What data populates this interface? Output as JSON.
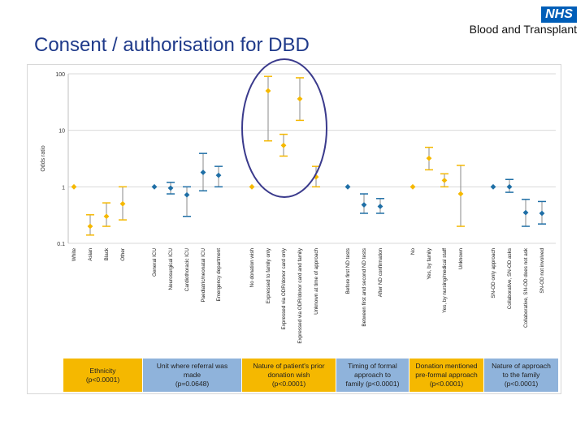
{
  "header": {
    "title": "Consent / authorisation for DBD",
    "logo_text": "NHS",
    "org_name": "Blood and Transplant"
  },
  "colors": {
    "gold": "#f5b800",
    "blue": "#1f6fa6",
    "highlight_circle": "#3a3a8c",
    "legend_gold": "#f5b800",
    "legend_blue": "#8fb3db"
  },
  "chart_data": {
    "type": "scatter",
    "ylabel": "Odds ratio",
    "yscale": "log",
    "ylim": [
      0.1,
      100
    ],
    "yticks": [
      0.1,
      1,
      10,
      100
    ],
    "grid": "horizontal",
    "categories": [
      "White",
      "Asian",
      "Black",
      "Other",
      "General ICU",
      "Neurosurgical ICU",
      "Cardiothoracic ICU",
      "Paediatric/neonatal ICU",
      "Emergency department",
      "No donation wish",
      "Expressed to family only",
      "Expressed via ODR/donor card only",
      "Expressed via ODR/donor card and family",
      "Unknown at time of approach",
      "Before first ND tests",
      "Between first and second ND tests",
      "After ND confirmation",
      "No",
      "Yes, by family",
      "Yes, by nursing/medical staff",
      "Unknown",
      "SN-OD only approach",
      "Collaborative, SN-OD asks",
      "Collaborative, SN-OD does not ask",
      "SN-OD not involved"
    ],
    "series": [
      {
        "group": "Ethnicity",
        "color": "gold",
        "points": [
          {
            "category": "White",
            "or": 1,
            "lower": 1,
            "upper": 1
          },
          {
            "category": "Asian",
            "or": 0.2,
            "lower": 0.14,
            "upper": 0.32
          },
          {
            "category": "Black",
            "or": 0.3,
            "lower": 0.2,
            "upper": 0.52
          },
          {
            "category": "Other",
            "or": 0.5,
            "lower": 0.26,
            "upper": 1.0
          }
        ]
      },
      {
        "group": "Unit where referral was made",
        "color": "blue",
        "points": [
          {
            "category": "General ICU",
            "or": 1,
            "lower": 1,
            "upper": 1
          },
          {
            "category": "Neurosurgical ICU",
            "or": 0.95,
            "lower": 0.75,
            "upper": 1.2
          },
          {
            "category": "Cardiothoracic ICU",
            "or": 0.72,
            "lower": 0.3,
            "upper": 1.0
          },
          {
            "category": "Paediatric/neonatal ICU",
            "or": 1.8,
            "lower": 0.85,
            "upper": 3.9
          },
          {
            "category": "Emergency department",
            "or": 1.6,
            "lower": 1.0,
            "upper": 2.3
          }
        ]
      },
      {
        "group": "Nature of patient's prior donation wish",
        "color": "gold",
        "points": [
          {
            "category": "No donation wish",
            "or": 1,
            "lower": 1,
            "upper": 1
          },
          {
            "category": "Expressed to family only",
            "or": 50,
            "lower": 6.5,
            "upper": 90
          },
          {
            "category": "Expressed via ODR/donor card only",
            "or": 5.4,
            "lower": 3.5,
            "upper": 8.5
          },
          {
            "category": "Expressed via ODR/donor card and family",
            "or": 36,
            "lower": 15,
            "upper": 85
          },
          {
            "category": "Unknown at time of approach",
            "or": 1.5,
            "lower": 1.0,
            "upper": 2.3
          }
        ]
      },
      {
        "group": "Timing of formal approach to family",
        "color": "blue",
        "points": [
          {
            "category": "Before first ND tests",
            "or": 1,
            "lower": 1,
            "upper": 1
          },
          {
            "category": "Between first and second ND tests",
            "or": 0.48,
            "lower": 0.34,
            "upper": 0.75
          },
          {
            "category": "After ND confirmation",
            "or": 0.45,
            "lower": 0.34,
            "upper": 0.62
          }
        ]
      },
      {
        "group": "Donation mentioned pre-formal approach",
        "color": "gold",
        "points": [
          {
            "category": "No",
            "or": 1,
            "lower": 1,
            "upper": 1
          },
          {
            "category": "Yes, by family",
            "or": 3.2,
            "lower": 2.0,
            "upper": 5.0
          },
          {
            "category": "Yes, by nursing/medical staff",
            "or": 1.3,
            "lower": 1.0,
            "upper": 1.7
          },
          {
            "category": "Unknown",
            "or": 0.75,
            "lower": 0.2,
            "upper": 2.4
          }
        ]
      },
      {
        "group": "Nature of approach to the family",
        "color": "blue",
        "points": [
          {
            "category": "SN-OD only approach",
            "or": 1,
            "lower": 1,
            "upper": 1
          },
          {
            "category": "Collaborative, SN-OD asks",
            "or": 1.0,
            "lower": 0.8,
            "upper": 1.35
          },
          {
            "category": "Collaborative, SN-OD does not ask",
            "or": 0.35,
            "lower": 0.2,
            "upper": 0.6
          },
          {
            "category": "SN-OD not involved",
            "or": 0.34,
            "lower": 0.22,
            "upper": 0.55
          }
        ]
      }
    ],
    "legend": [
      {
        "text": "Ethnicity\n(p<0.0001)",
        "color": "gold"
      },
      {
        "text": "Unit where referral was\nmade\n(p=0.0648)",
        "color": "blue"
      },
      {
        "text": "Nature of patient's prior\ndonation wish\n(p<0.0001)",
        "color": "gold"
      },
      {
        "text": "Timing of formal\napproach to\nfamily (p<0.0001)",
        "color": "blue"
      },
      {
        "text": "Donation mentioned\npre-formal approach\n(p<0.0001)",
        "color": "gold"
      },
      {
        "text": "Nature of approach\nto the family\n(p<0.0001)",
        "color": "blue"
      }
    ]
  }
}
